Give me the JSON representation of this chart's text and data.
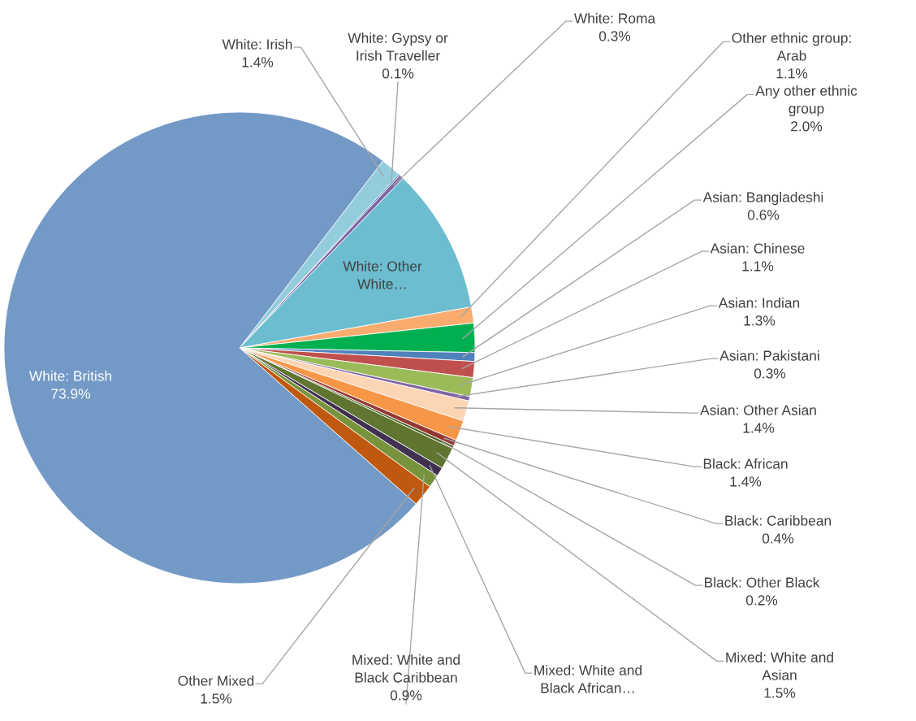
{
  "chart_data": {
    "type": "pie",
    "categories": [
      "White: Irish",
      "White: Gypsy or Irish Traveller",
      "White: Roma",
      "White: Other White…",
      "Other ethnic group: Arab",
      "Any other ethnic group",
      "Asian: Bangladeshi",
      "Asian: Chinese",
      "Asian: Indian",
      "Asian: Pakistani",
      "Asian: Other Asian",
      "Black: African",
      "Black: Caribbean",
      "Black: Other Black",
      "Mixed: White and Asian",
      "Mixed: White and Black African…",
      "Mixed: White and Black Caribbean",
      "Other Mixed",
      "White: British"
    ],
    "values": [
      1.4,
      0.1,
      0.3,
      10.0,
      1.1,
      2.0,
      0.6,
      1.1,
      1.3,
      0.3,
      1.4,
      1.4,
      0.4,
      0.2,
      1.5,
      0.6,
      0.9,
      1.5,
      73.9
    ],
    "value_labels": [
      "1.4%",
      "0.1%",
      "0.3%",
      null,
      "1.1%",
      "2.0%",
      "0.6%",
      "1.1%",
      "1.3%",
      "0.3%",
      "1.4%",
      "1.4%",
      "0.4%",
      "0.2%",
      "1.5%",
      null,
      "0.9%",
      "1.5%",
      "73.9%"
    ],
    "colors": [
      "#93cddd",
      "#4f81bd",
      "#8064a2",
      "#6cbdd0",
      "#f9ac6e",
      "#00b050",
      "#4f81bd",
      "#c0504d",
      "#9bbb59",
      "#8064a2",
      "#fcd5b5",
      "#f79646",
      "#953735",
      "#4f6228",
      "#5f7530",
      "#403152",
      "#77933c",
      "#c0590f",
      "#7399c6"
    ]
  }
}
